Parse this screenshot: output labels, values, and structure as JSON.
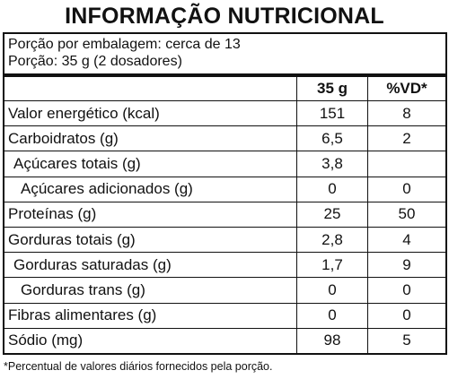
{
  "header": {
    "title": "INFORMAÇÃO NUTRICIONAL"
  },
  "serving": {
    "per_package": "Porção por embalagem: cerca de 13",
    "portion": "Porção: 35 g (2 dosadores)"
  },
  "table": {
    "columns": [
      "35 g",
      "%VD*"
    ],
    "rows": [
      [
        "Valor energético (kcal)",
        "151",
        "8"
      ],
      [
        "Carboidratos (g)",
        "6,5",
        "2"
      ],
      [
        "Açúcares totais (g)",
        "3,8",
        null
      ],
      [
        "Açúcares adicionados (g)",
        "0",
        "0"
      ],
      [
        "Proteínas (g)",
        "25",
        "50"
      ],
      [
        "Gorduras totais (g)",
        "2,8",
        "4"
      ],
      [
        "Gorduras saturadas (g)",
        "1,7",
        "9"
      ],
      [
        "Gorduras trans (g)",
        "0",
        "0"
      ],
      [
        "Fibras alimentares (g)",
        "0",
        "0"
      ],
      [
        "Sódio (mg)",
        "98",
        "5"
      ]
    ]
  },
  "footnote": "*Percentual de valores diários fornecidos pela porção."
}
